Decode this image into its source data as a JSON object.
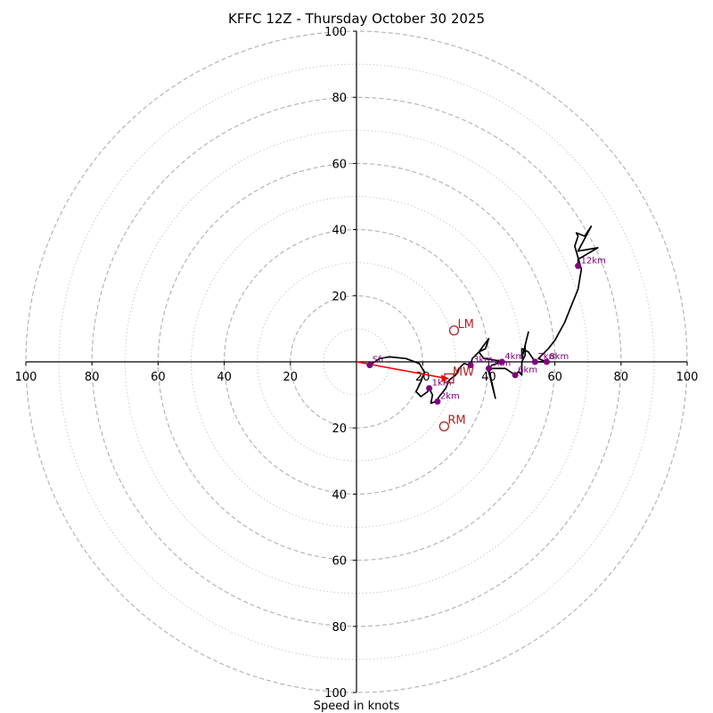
{
  "chart_data": {
    "type": "line",
    "subtype": "hodograph",
    "title": "KFFC 12Z - Thursday October 30 2025",
    "xlabel": "Speed in knots",
    "ylabel": "",
    "range_knots": 100,
    "major_rings": [
      20,
      40,
      60,
      80,
      100
    ],
    "minor_rings": [
      10,
      30,
      50,
      70,
      90
    ],
    "tick_labels": [
      "20",
      "40",
      "60",
      "80",
      "100"
    ],
    "grid": true,
    "wind_profile": {
      "name": "hodograph-trace",
      "color": "#000000",
      "points": [
        [
          4,
          -1
        ],
        [
          7,
          1
        ],
        [
          10,
          1.5
        ],
        [
          15,
          1
        ],
        [
          19,
          -0.5
        ],
        [
          20.5,
          -3
        ],
        [
          19.5,
          -6
        ],
        [
          18,
          -9
        ],
        [
          19.5,
          -10.5
        ],
        [
          21.5,
          -9
        ],
        [
          22,
          -8
        ],
        [
          23,
          -10
        ],
        [
          22.5,
          -12.5
        ],
        [
          24,
          -12
        ],
        [
          25,
          -10.5
        ],
        [
          27,
          -8
        ],
        [
          28,
          -5.5
        ],
        [
          30,
          -4
        ],
        [
          31,
          -2
        ],
        [
          32.5,
          -0.5
        ],
        [
          34.5,
          -1
        ],
        [
          35,
          1
        ],
        [
          37,
          3
        ],
        [
          39,
          4
        ],
        [
          40,
          7
        ],
        [
          37,
          3
        ],
        [
          38.5,
          1
        ],
        [
          42,
          0.5
        ],
        [
          44,
          0
        ],
        [
          41,
          -1
        ],
        [
          40,
          -2
        ],
        [
          42,
          -11
        ],
        [
          40,
          -3
        ],
        [
          41,
          -2
        ],
        [
          45,
          -2
        ],
        [
          48,
          -4
        ],
        [
          49,
          -3
        ],
        [
          50,
          -4
        ],
        [
          50,
          0
        ],
        [
          51,
          2
        ],
        [
          51,
          5
        ],
        [
          52,
          9
        ],
        [
          50,
          1
        ],
        [
          50,
          4
        ],
        [
          52,
          3
        ],
        [
          54,
          0
        ],
        [
          57.5,
          0
        ],
        [
          55,
          1
        ],
        [
          56,
          2
        ],
        [
          58,
          4
        ],
        [
          60,
          6.5
        ],
        [
          63,
          12
        ],
        [
          65,
          17
        ],
        [
          67,
          22
        ],
        [
          68,
          28
        ],
        [
          66,
          35
        ],
        [
          67,
          38
        ],
        [
          66.5,
          39
        ],
        [
          69,
          38
        ],
        [
          71,
          41
        ],
        [
          67,
          33.5
        ],
        [
          70,
          34
        ],
        [
          73,
          34.5
        ],
        [
          67,
          31
        ],
        [
          67,
          29
        ]
      ]
    },
    "height_markers": [
      {
        "label": "Sfc",
        "u": 4,
        "v": -1
      },
      {
        "label": "1km",
        "u": 22,
        "v": -8
      },
      {
        "label": "2km",
        "u": 24.5,
        "v": -12
      },
      {
        "label": "3km",
        "u": 34.5,
        "v": -1
      },
      {
        "label": "4km",
        "u": 44,
        "v": 0
      },
      {
        "label": "5km",
        "u": 40,
        "v": -2
      },
      {
        "label": "6km",
        "u": 48,
        "v": -4
      },
      {
        "label": "7km",
        "u": 54,
        "v": 0
      },
      {
        "label": "8km",
        "u": 57.5,
        "v": 0
      },
      {
        "label": "12km",
        "u": 67,
        "v": 29
      }
    ],
    "height_marker_color": "#800080",
    "storm_motion": [
      {
        "label": "LM",
        "u": 29.5,
        "v": 9.5,
        "marker": "circle"
      },
      {
        "label": "RM",
        "u": 26.5,
        "v": -19.5,
        "marker": "circle"
      },
      {
        "label": "MW",
        "u": 28,
        "v": -5,
        "marker": "square"
      }
    ],
    "storm_motion_color": "#b22222",
    "shear_vector": {
      "from": [
        0,
        0
      ],
      "to": [
        28,
        -5
      ],
      "color": "#ff0000",
      "name": "sfc-to-mean-wind"
    }
  }
}
